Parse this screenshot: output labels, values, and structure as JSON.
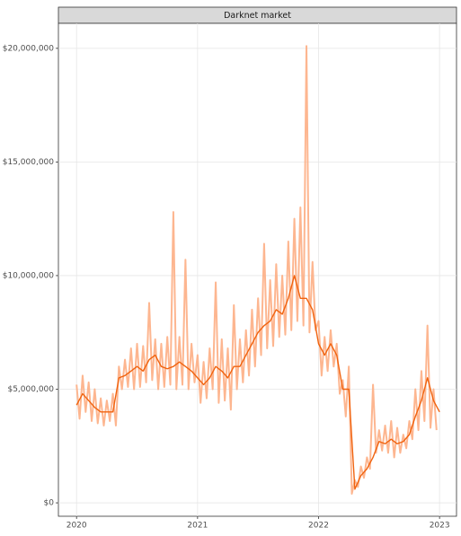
{
  "chart_data": {
    "type": "line",
    "title": "Darknet market",
    "xlim": [
      2019.85,
      2023.14
    ],
    "xticks": [
      2020,
      2021,
      2022,
      2023
    ],
    "ylim": [
      -590000,
      21100000
    ],
    "yticks": [
      {
        "value": 0,
        "label": "$0"
      },
      {
        "value": 5000000,
        "label": "$5,000,000"
      },
      {
        "value": 10000000,
        "label": "$10,000,000"
      },
      {
        "value": 15000000,
        "label": "$15,000,000"
      },
      {
        "value": 20000000,
        "label": "$20,000,000"
      }
    ],
    "grid": true,
    "series": [
      {
        "color": "#fdae84",
        "x": [
          2020.0,
          2020.025,
          2020.05,
          2020.075,
          2020.1,
          2020.125,
          2020.15,
          2020.175,
          2020.2,
          2020.225,
          2020.25,
          2020.275,
          2020.3,
          2020.325,
          2020.35,
          2020.375,
          2020.4,
          2020.425,
          2020.45,
          2020.475,
          2020.5,
          2020.525,
          2020.55,
          2020.575,
          2020.6,
          2020.625,
          2020.65,
          2020.675,
          2020.7,
          2020.725,
          2020.75,
          2020.775,
          2020.8,
          2020.825,
          2020.85,
          2020.875,
          2020.9,
          2020.925,
          2020.95,
          2020.975,
          2021.0,
          2021.025,
          2021.05,
          2021.075,
          2021.1,
          2021.125,
          2021.15,
          2021.175,
          2021.2,
          2021.225,
          2021.25,
          2021.275,
          2021.3,
          2021.325,
          2021.35,
          2021.375,
          2021.4,
          2021.425,
          2021.45,
          2021.475,
          2021.5,
          2021.525,
          2021.55,
          2021.575,
          2021.6,
          2021.625,
          2021.65,
          2021.675,
          2021.7,
          2021.725,
          2021.75,
          2021.775,
          2021.8,
          2021.825,
          2021.85,
          2021.875,
          2021.9,
          2021.925,
          2021.95,
          2021.975,
          2022.0,
          2022.025,
          2022.05,
          2022.075,
          2022.1,
          2022.125,
          2022.15,
          2022.175,
          2022.2,
          2022.225,
          2022.25,
          2022.275,
          2022.3,
          2022.325,
          2022.35,
          2022.375,
          2022.4,
          2022.425,
          2022.45,
          2022.475,
          2022.5,
          2022.525,
          2022.55,
          2022.575,
          2022.6,
          2022.625,
          2022.65,
          2022.675,
          2022.7,
          2022.725,
          2022.75,
          2022.775,
          2022.8,
          2022.825,
          2022.85,
          2022.875,
          2022.9,
          2022.925,
          2022.95,
          2022.975
        ],
        "values": [
          5200000,
          3700000,
          5600000,
          4000000,
          5300000,
          3600000,
          5000000,
          3500000,
          4600000,
          3400000,
          4500000,
          3600000,
          4800000,
          3400000,
          6000000,
          5000000,
          6300000,
          5100000,
          6800000,
          5000000,
          7000000,
          5100000,
          6900000,
          5300000,
          8800000,
          5400000,
          7200000,
          5000000,
          7000000,
          5100000,
          7300000,
          5200000,
          12800000,
          5000000,
          7300000,
          5200000,
          10700000,
          5000000,
          7000000,
          5300000,
          6500000,
          4400000,
          6200000,
          4600000,
          6800000,
          5000000,
          9700000,
          4400000,
          7200000,
          4500000,
          6800000,
          4100000,
          8700000,
          5000000,
          7200000,
          5300000,
          7600000,
          5600000,
          8500000,
          6000000,
          9000000,
          6500000,
          11400000,
          6800000,
          9800000,
          6900000,
          10500000,
          7300000,
          10000000,
          7400000,
          11500000,
          7600000,
          12500000,
          8000000,
          13000000,
          7800000,
          20100000,
          7500000,
          10600000,
          7600000,
          8000000,
          5600000,
          7300000,
          5800000,
          7600000,
          6000000,
          7000000,
          4800000,
          5400000,
          3800000,
          6000000,
          400000,
          1000000,
          700000,
          1600000,
          1100000,
          2000000,
          1500000,
          5200000,
          2200000,
          3200000,
          2300000,
          3400000,
          2200000,
          3600000,
          2000000,
          3300000,
          2200000,
          3000000,
          2400000,
          3600000,
          2800000,
          5000000,
          3200000,
          5800000,
          3600000,
          7800000,
          3300000,
          5000000,
          3200000
        ]
      },
      {
        "color": "#f0630f",
        "x": [
          2020.0,
          2020.05,
          2020.1,
          2020.15,
          2020.2,
          2020.25,
          2020.3,
          2020.35,
          2020.4,
          2020.45,
          2020.5,
          2020.55,
          2020.6,
          2020.65,
          2020.7,
          2020.75,
          2020.8,
          2020.85,
          2020.9,
          2020.95,
          2021.0,
          2021.05,
          2021.1,
          2021.15,
          2021.2,
          2021.25,
          2021.3,
          2021.35,
          2021.4,
          2021.45,
          2021.5,
          2021.55,
          2021.6,
          2021.65,
          2021.7,
          2021.75,
          2021.8,
          2021.85,
          2021.9,
          2021.95,
          2022.0,
          2022.05,
          2022.1,
          2022.15,
          2022.2,
          2022.25,
          2022.3,
          2022.35,
          2022.4,
          2022.45,
          2022.5,
          2022.55,
          2022.6,
          2022.65,
          2022.7,
          2022.75,
          2022.8,
          2022.85,
          2022.9,
          2022.95,
          2023.0
        ],
        "values": [
          4300000,
          4800000,
          4500000,
          4200000,
          4000000,
          4000000,
          4000000,
          5500000,
          5600000,
          5800000,
          6000000,
          5800000,
          6300000,
          6500000,
          6000000,
          5900000,
          6000000,
          6200000,
          6000000,
          5800000,
          5500000,
          5200000,
          5500000,
          6000000,
          5800000,
          5500000,
          6000000,
          6000000,
          6500000,
          7000000,
          7500000,
          7800000,
          8000000,
          8500000,
          8300000,
          9000000,
          10000000,
          9000000,
          9000000,
          8500000,
          7000000,
          6500000,
          7000000,
          6500000,
          5000000,
          5000000,
          600000,
          1200000,
          1500000,
          2000000,
          2700000,
          2600000,
          2800000,
          2600000,
          2700000,
          3000000,
          3800000,
          4500000,
          5500000,
          4500000,
          4000000
        ]
      }
    ]
  }
}
